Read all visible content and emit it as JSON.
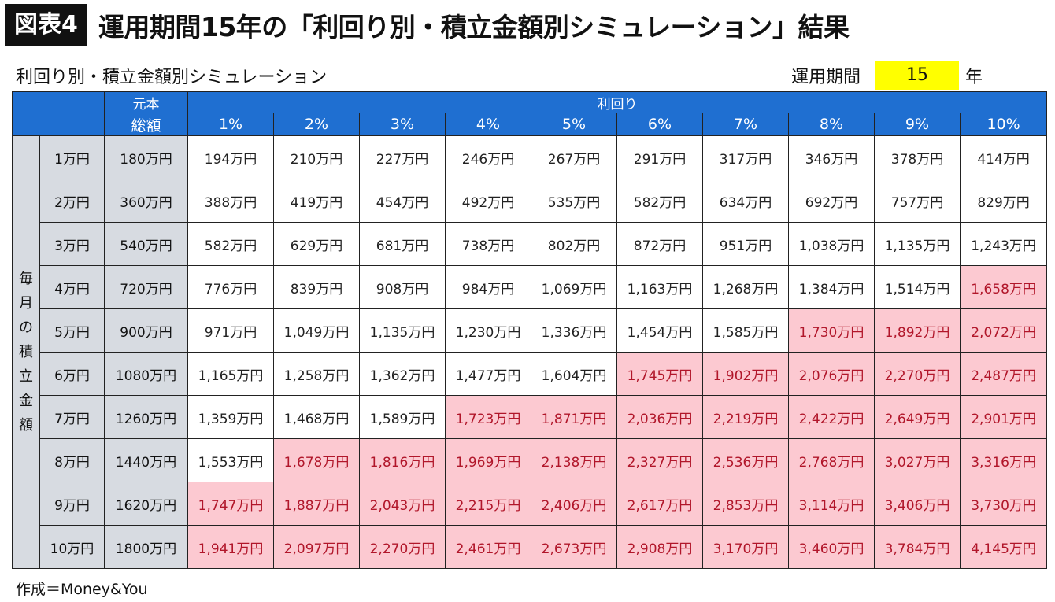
{
  "header": {
    "badge": "図表4",
    "title": "運用期間15年の「利回り別・積立金額別シミュレーション」結果"
  },
  "subtitle": "利回り別・積立金額別シミュレーション",
  "period": {
    "label": "運用期間",
    "value": "15",
    "unit": "年"
  },
  "table": {
    "principal_header": [
      "元本",
      "総額"
    ],
    "rate_header": "利回り",
    "rates": [
      "1%",
      "2%",
      "3%",
      "4%",
      "5%",
      "6%",
      "7%",
      "8%",
      "9%",
      "10%"
    ],
    "side_label": "毎月の積立金額",
    "highlight_color": "#fcc9d1",
    "rows": [
      {
        "monthly": "1万円",
        "principal": "180万円",
        "values": [
          "194万円",
          "210万円",
          "227万円",
          "246万円",
          "267万円",
          "291万円",
          "317万円",
          "346万円",
          "378万円",
          "414万円"
        ],
        "highlight_from": 10
      },
      {
        "monthly": "2万円",
        "principal": "360万円",
        "values": [
          "388万円",
          "419万円",
          "454万円",
          "492万円",
          "535万円",
          "582万円",
          "634万円",
          "692万円",
          "757万円",
          "829万円"
        ],
        "highlight_from": 10
      },
      {
        "monthly": "3万円",
        "principal": "540万円",
        "values": [
          "582万円",
          "629万円",
          "681万円",
          "738万円",
          "802万円",
          "872万円",
          "951万円",
          "1,038万円",
          "1,135万円",
          "1,243万円"
        ],
        "highlight_from": 10
      },
      {
        "monthly": "4万円",
        "principal": "720万円",
        "values": [
          "776万円",
          "839万円",
          "908万円",
          "984万円",
          "1,069万円",
          "1,163万円",
          "1,268万円",
          "1,384万円",
          "1,514万円",
          "1,658万円"
        ],
        "highlight_from": 9
      },
      {
        "monthly": "5万円",
        "principal": "900万円",
        "values": [
          "971万円",
          "1,049万円",
          "1,135万円",
          "1,230万円",
          "1,336万円",
          "1,454万円",
          "1,585万円",
          "1,730万円",
          "1,892万円",
          "2,072万円"
        ],
        "highlight_from": 7
      },
      {
        "monthly": "6万円",
        "principal": "1080万円",
        "values": [
          "1,165万円",
          "1,258万円",
          "1,362万円",
          "1,477万円",
          "1,604万円",
          "1,745万円",
          "1,902万円",
          "2,076万円",
          "2,270万円",
          "2,487万円"
        ],
        "highlight_from": 5
      },
      {
        "monthly": "7万円",
        "principal": "1260万円",
        "values": [
          "1,359万円",
          "1,468万円",
          "1,589万円",
          "1,723万円",
          "1,871万円",
          "2,036万円",
          "2,219万円",
          "2,422万円",
          "2,649万円",
          "2,901万円"
        ],
        "highlight_from": 3
      },
      {
        "monthly": "8万円",
        "principal": "1440万円",
        "values": [
          "1,553万円",
          "1,678万円",
          "1,816万円",
          "1,969万円",
          "2,138万円",
          "2,327万円",
          "2,536万円",
          "2,768万円",
          "3,027万円",
          "3,316万円"
        ],
        "highlight_from": 1
      },
      {
        "monthly": "9万円",
        "principal": "1620万円",
        "values": [
          "1,747万円",
          "1,887万円",
          "2,043万円",
          "2,215万円",
          "2,406万円",
          "2,617万円",
          "2,853万円",
          "3,114万円",
          "3,406万円",
          "3,730万円"
        ],
        "highlight_from": 0
      },
      {
        "monthly": "10万円",
        "principal": "1800万円",
        "values": [
          "1,941万円",
          "2,097万円",
          "2,270万円",
          "2,461万円",
          "2,673万円",
          "2,908万円",
          "3,170万円",
          "3,460万円",
          "3,784万円",
          "4,145万円"
        ],
        "highlight_from": 0
      }
    ]
  },
  "footer": "作成＝Money&You"
}
